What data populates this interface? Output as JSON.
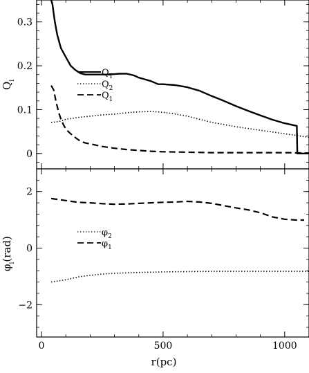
{
  "chart_data": [
    {
      "type": "line",
      "panel": "top",
      "ylabel": "Q",
      "ylabel_sub": "i",
      "xlim": [
        -20,
        1100
      ],
      "ylim": [
        -0.035,
        0.35
      ],
      "yticks": [
        {
          "value": 0,
          "label": "0"
        },
        {
          "value": 0.1,
          "label": "0.1"
        },
        {
          "value": 0.2,
          "label": "0.2"
        },
        {
          "value": 0.3,
          "label": "0.3"
        }
      ],
      "legend_position": "left",
      "series": [
        {
          "name": "Q",
          "name_sub": "T",
          "style": "solid",
          "x": [
            40,
            45,
            50,
            55,
            60,
            65,
            70,
            75,
            80,
            90,
            100,
            110,
            120,
            140,
            160,
            180,
            200,
            220,
            250,
            280,
            300,
            320,
            350,
            380,
            400,
            420,
            450,
            480,
            500,
            550,
            600,
            650,
            700,
            750,
            800,
            850,
            900,
            950,
            1000,
            1050,
            1052,
            1056,
            1100
          ],
          "y": [
            0.35,
            0.34,
            0.32,
            0.3,
            0.285,
            0.27,
            0.26,
            0.25,
            0.24,
            0.23,
            0.22,
            0.21,
            0.2,
            0.19,
            0.183,
            0.18,
            0.18,
            0.18,
            0.18,
            0.18,
            0.181,
            0.182,
            0.182,
            0.178,
            0.173,
            0.17,
            0.165,
            0.158,
            0.158,
            0.156,
            0.151,
            0.143,
            0.131,
            0.12,
            0.108,
            0.097,
            0.087,
            0.077,
            0.069,
            0.063,
            0.0,
            0.0,
            0.0
          ]
        },
        {
          "name": "Q",
          "name_sub": "2",
          "style": "dotted",
          "x": [
            40,
            60,
            80,
            100,
            150,
            200,
            250,
            300,
            350,
            400,
            450,
            500,
            550,
            600,
            650,
            700,
            750,
            800,
            850,
            900,
            950,
            1000,
            1050,
            1100
          ],
          "y": [
            0.071,
            0.072,
            0.074,
            0.078,
            0.082,
            0.085,
            0.088,
            0.09,
            0.093,
            0.095,
            0.096,
            0.094,
            0.09,
            0.085,
            0.078,
            0.071,
            0.066,
            0.061,
            0.057,
            0.053,
            0.049,
            0.045,
            0.041,
            0.037
          ]
        },
        {
          "name": "Q",
          "name_sub": "1",
          "style": "dashed",
          "x": [
            40,
            50,
            60,
            70,
            80,
            90,
            100,
            110,
            120,
            140,
            160,
            180,
            200,
            250,
            300,
            350,
            400,
            450,
            500,
            600,
            700,
            800,
            900,
            1000,
            1100
          ],
          "y": [
            0.155,
            0.145,
            0.118,
            0.095,
            0.078,
            0.066,
            0.056,
            0.05,
            0.045,
            0.036,
            0.028,
            0.024,
            0.022,
            0.016,
            0.012,
            0.009,
            0.007,
            0.005,
            0.004,
            0.003,
            0.002,
            0.002,
            0.002,
            0.002,
            0.001
          ]
        }
      ]
    },
    {
      "type": "line",
      "panel": "bottom",
      "ylabel": "φ",
      "ylabel_sub": "i",
      "ylabel_suffix": "(rad)",
      "xlabel": "r(pc)",
      "xlim": [
        -20,
        1100
      ],
      "ylim": [
        -3.1415,
        2.8
      ],
      "yticks": [
        {
          "value": -2,
          "label": "−2"
        },
        {
          "value": 0,
          "label": "0"
        },
        {
          "value": 2,
          "label": "2"
        }
      ],
      "xticks": [
        {
          "value": 0,
          "label": "0"
        },
        {
          "value": 500,
          "label": "500"
        },
        {
          "value": 1000,
          "label": "1000"
        }
      ],
      "legend_position": "center-left",
      "series": [
        {
          "name": "φ",
          "name_sub": "2",
          "style": "dotted",
          "x": [
            40,
            100,
            150,
            200,
            250,
            300,
            400,
            500,
            600,
            700,
            800,
            900,
            1000,
            1100
          ],
          "y": [
            -1.2,
            -1.12,
            -1.02,
            -0.96,
            -0.92,
            -0.89,
            -0.86,
            -0.84,
            -0.83,
            -0.82,
            -0.82,
            -0.82,
            -0.82,
            -0.82
          ]
        },
        {
          "name": "φ",
          "name_sub": "1",
          "style": "dashed",
          "x": [
            40,
            100,
            150,
            200,
            250,
            300,
            350,
            400,
            450,
            500,
            550,
            600,
            650,
            700,
            750,
            800,
            850,
            900,
            950,
            1000,
            1050,
            1080
          ],
          "y": [
            1.75,
            1.68,
            1.62,
            1.6,
            1.57,
            1.55,
            1.56,
            1.58,
            1.6,
            1.62,
            1.63,
            1.65,
            1.63,
            1.58,
            1.5,
            1.42,
            1.35,
            1.25,
            1.1,
            1.02,
            0.99,
            0.99
          ]
        }
      ]
    }
  ]
}
